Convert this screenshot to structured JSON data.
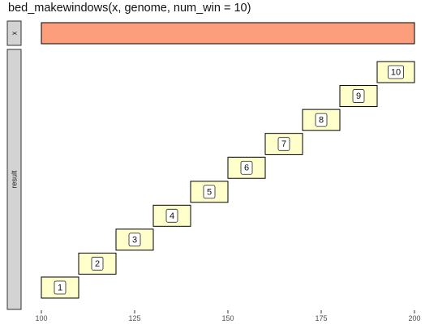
{
  "chart_data": {
    "type": "interval-facet",
    "title": "bed_makewindows(x, genome, num_win = 10)",
    "x_ticks": [
      100,
      125,
      150,
      175,
      200
    ],
    "xlim": [
      97,
      200
    ],
    "colors": {
      "x_fill": "#fc9e7c",
      "window_fill": "#ffffcc",
      "strip_fill": "#d3d3d3",
      "stroke": "#000000",
      "label_bg": "#ffffff"
    },
    "panels": [
      {
        "name": "x",
        "strip_label": "x",
        "intervals": [
          {
            "start": 100,
            "end": 200,
            "row": 0,
            "label": ""
          }
        ],
        "rows": 1
      },
      {
        "name": "result",
        "strip_label": "result",
        "intervals": [
          {
            "start": 100,
            "end": 110,
            "row": 0,
            "label": "1"
          },
          {
            "start": 110,
            "end": 120,
            "row": 1,
            "label": "2"
          },
          {
            "start": 120,
            "end": 130,
            "row": 2,
            "label": "3"
          },
          {
            "start": 130,
            "end": 140,
            "row": 3,
            "label": "4"
          },
          {
            "start": 140,
            "end": 150,
            "row": 4,
            "label": "5"
          },
          {
            "start": 150,
            "end": 160,
            "row": 5,
            "label": "6"
          },
          {
            "start": 160,
            "end": 170,
            "row": 6,
            "label": "7"
          },
          {
            "start": 170,
            "end": 180,
            "row": 7,
            "label": "8"
          },
          {
            "start": 180,
            "end": 190,
            "row": 8,
            "label": "9"
          },
          {
            "start": 190,
            "end": 200,
            "row": 9,
            "label": "10"
          }
        ],
        "rows": 10
      }
    ]
  }
}
